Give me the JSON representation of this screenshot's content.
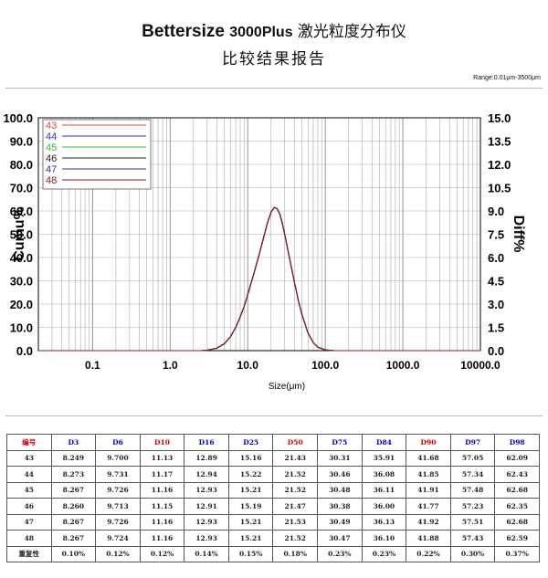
{
  "report": {
    "brand": "Bettersize",
    "model": "3000Plus",
    "instrument": "激光粒度分布仪",
    "subtitle": "比较结果报告",
    "range": "Range:0.01μm-3500μm"
  },
  "chart_data": {
    "type": "line",
    "xlabel": "Size(μm)",
    "ylabel_left": "Cumu%",
    "ylabel_right": "Diff%",
    "x_scale": "log",
    "xlim": [
      0.02,
      10000
    ],
    "x_ticks": [
      0.1,
      1,
      10,
      100,
      1000,
      10000
    ],
    "x_tick_labels": [
      "0.1",
      "1.0",
      "10.0",
      "100.0",
      "1000.0",
      "10000.0"
    ],
    "ylim_left": [
      0,
      100
    ],
    "ylim_right": [
      0,
      15
    ],
    "y_ticks_left": [
      "0.0",
      "10.0",
      "20.0",
      "30.0",
      "40.0",
      "50.0",
      "60.0",
      "70.0",
      "80.0",
      "90.0",
      "100.0"
    ],
    "y_ticks_right": [
      "0.0",
      "1.5",
      "3.0",
      "4.5",
      "6.0",
      "7.5",
      "9.0",
      "10.5",
      "12.0",
      "13.5",
      "15.0"
    ],
    "grid": true,
    "legend_position": "top-left",
    "series": [
      {
        "name": "43",
        "color": "#e04040"
      },
      {
        "name": "44",
        "color": "#3030c0"
      },
      {
        "name": "45",
        "color": "#30c030"
      },
      {
        "name": "46",
        "color": "#202020"
      },
      {
        "name": "47",
        "color": "#303080"
      },
      {
        "name": "48",
        "color": "#8b1a1a"
      }
    ],
    "distribution": {
      "x": [
        2.5,
        3,
        4,
        5,
        6,
        7,
        8,
        9,
        10,
        12,
        14,
        16,
        18,
        20,
        22,
        24,
        26,
        28,
        30,
        35,
        40,
        45,
        50,
        60,
        70,
        80,
        100,
        130,
        150
      ],
      "y_left": [
        0,
        0.2,
        1,
        3,
        6,
        10,
        14.5,
        19,
        24,
        33,
        41,
        48.5,
        55,
        59.5,
        61.5,
        61,
        58.5,
        54.5,
        50,
        39,
        29.5,
        21.5,
        15.5,
        7.5,
        3.5,
        1.5,
        0.3,
        0,
        0
      ]
    }
  },
  "table": {
    "headers": [
      {
        "label": "编号",
        "color": "red"
      },
      {
        "label": "D3",
        "color": "blue"
      },
      {
        "label": "D6",
        "color": "blue"
      },
      {
        "label": "D10",
        "color": "red"
      },
      {
        "label": "D16",
        "color": "blue"
      },
      {
        "label": "D25",
        "color": "blue"
      },
      {
        "label": "D50",
        "color": "red"
      },
      {
        "label": "D75",
        "color": "blue"
      },
      {
        "label": "D84",
        "color": "blue"
      },
      {
        "label": "D90",
        "color": "red"
      },
      {
        "label": "D97",
        "color": "blue"
      },
      {
        "label": "D98",
        "color": "blue"
      }
    ],
    "rows": [
      [
        "43",
        "8.249",
        "9.700",
        "11.13",
        "12.89",
        "15.16",
        "21.43",
        "30.31",
        "35.91",
        "41.68",
        "57.05",
        "62.09"
      ],
      [
        "44",
        "8.273",
        "9.731",
        "11.17",
        "12.94",
        "15.22",
        "21.52",
        "30.46",
        "36.08",
        "41.85",
        "57.34",
        "62.43"
      ],
      [
        "45",
        "8.267",
        "9.726",
        "11.16",
        "12.93",
        "15.21",
        "21.52",
        "30.48",
        "36.11",
        "41.91",
        "57.48",
        "62.68"
      ],
      [
        "46",
        "8.260",
        "9.713",
        "11.15",
        "12.91",
        "15.19",
        "21.47",
        "30.38",
        "36.00",
        "41.77",
        "57.23",
        "62.35"
      ],
      [
        "47",
        "8.267",
        "9.726",
        "11.16",
        "12.93",
        "15.21",
        "21.53",
        "30.49",
        "36.13",
        "41.92",
        "57.51",
        "62.68"
      ],
      [
        "48",
        "8.267",
        "9.724",
        "11.16",
        "12.93",
        "15.21",
        "21.52",
        "30.47",
        "36.10",
        "41.88",
        "57.43",
        "62.59"
      ],
      [
        "重复性",
        "0.10%",
        "0.12%",
        "0.12%",
        "0.14%",
        "0.15%",
        "0.18%",
        "0.23%",
        "0.23%",
        "0.22%",
        "0.30%",
        "0.37%"
      ]
    ]
  }
}
